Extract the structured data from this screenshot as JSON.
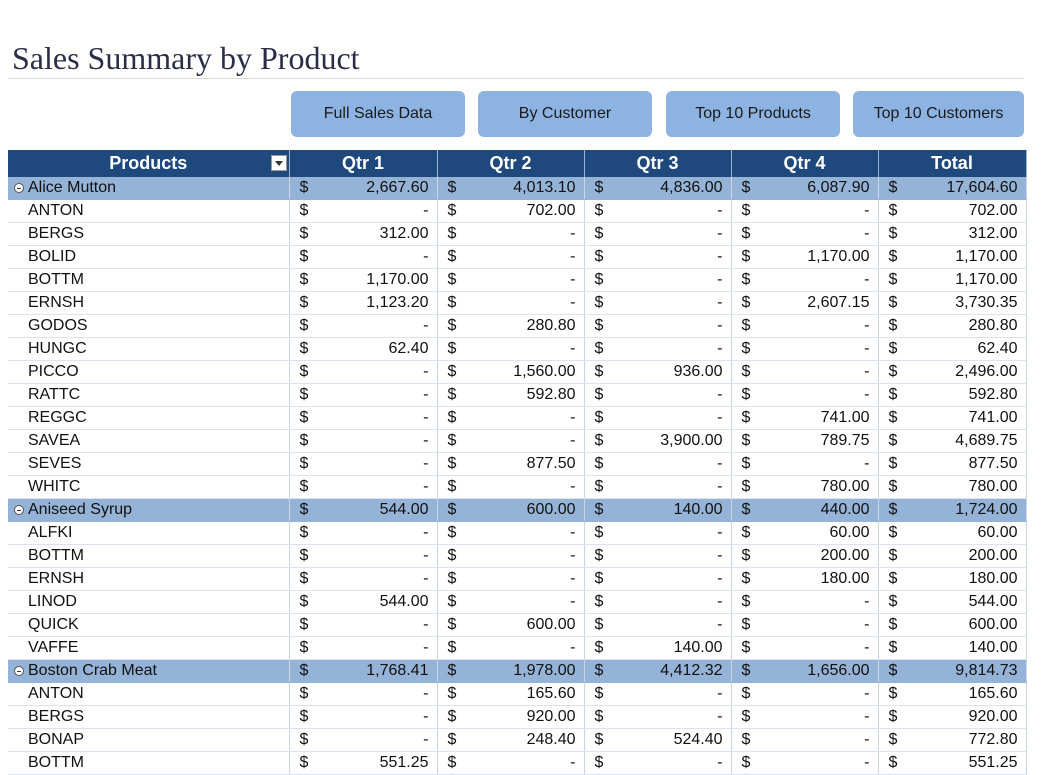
{
  "title": "Sales Summary by Product",
  "buttons": [
    "Full Sales Data",
    "By Customer",
    "Top 10 Products",
    "Top 10 Customers"
  ],
  "table": {
    "currency": "$",
    "columns": [
      "Products",
      "Qtr 1",
      "Qtr 2",
      "Qtr 3",
      "Qtr 4",
      "Total"
    ],
    "rows": [
      {
        "group": true,
        "label": "Alice Mutton",
        "cells": [
          "2,667.60",
          "4,013.10",
          "4,836.00",
          "6,087.90",
          "17,604.60"
        ]
      },
      {
        "label": "ANTON",
        "cells": [
          "-",
          "702.00",
          "-",
          "-",
          "702.00"
        ]
      },
      {
        "label": "BERGS",
        "cells": [
          "312.00",
          "-",
          "-",
          "-",
          "312.00"
        ]
      },
      {
        "label": "BOLID",
        "cells": [
          "-",
          "-",
          "-",
          "1,170.00",
          "1,170.00"
        ]
      },
      {
        "label": "BOTTM",
        "cells": [
          "1,170.00",
          "-",
          "-",
          "-",
          "1,170.00"
        ]
      },
      {
        "label": "ERNSH",
        "cells": [
          "1,123.20",
          "-",
          "-",
          "2,607.15",
          "3,730.35"
        ]
      },
      {
        "label": "GODOS",
        "cells": [
          "-",
          "280.80",
          "-",
          "-",
          "280.80"
        ]
      },
      {
        "label": "HUNGC",
        "cells": [
          "62.40",
          "-",
          "-",
          "-",
          "62.40"
        ]
      },
      {
        "label": "PICCO",
        "cells": [
          "-",
          "1,560.00",
          "936.00",
          "-",
          "2,496.00"
        ]
      },
      {
        "label": "RATTC",
        "cells": [
          "-",
          "592.80",
          "-",
          "-",
          "592.80"
        ]
      },
      {
        "label": "REGGC",
        "cells": [
          "-",
          "-",
          "-",
          "741.00",
          "741.00"
        ]
      },
      {
        "label": "SAVEA",
        "cells": [
          "-",
          "-",
          "3,900.00",
          "789.75",
          "4,689.75"
        ]
      },
      {
        "label": "SEVES",
        "cells": [
          "-",
          "877.50",
          "-",
          "-",
          "877.50"
        ]
      },
      {
        "label": "WHITC",
        "cells": [
          "-",
          "-",
          "-",
          "780.00",
          "780.00"
        ]
      },
      {
        "group": true,
        "label": "Aniseed Syrup",
        "cells": [
          "544.00",
          "600.00",
          "140.00",
          "440.00",
          "1,724.00"
        ]
      },
      {
        "label": "ALFKI",
        "cells": [
          "-",
          "-",
          "-",
          "60.00",
          "60.00"
        ]
      },
      {
        "label": "BOTTM",
        "cells": [
          "-",
          "-",
          "-",
          "200.00",
          "200.00"
        ]
      },
      {
        "label": "ERNSH",
        "cells": [
          "-",
          "-",
          "-",
          "180.00",
          "180.00"
        ]
      },
      {
        "label": "LINOD",
        "cells": [
          "544.00",
          "-",
          "-",
          "-",
          "544.00"
        ]
      },
      {
        "label": "QUICK",
        "cells": [
          "-",
          "600.00",
          "-",
          "-",
          "600.00"
        ]
      },
      {
        "label": "VAFFE",
        "cells": [
          "-",
          "-",
          "140.00",
          "-",
          "140.00"
        ]
      },
      {
        "group": true,
        "label": "Boston Crab Meat",
        "cells": [
          "1,768.41",
          "1,978.00",
          "4,412.32",
          "1,656.00",
          "9,814.73"
        ]
      },
      {
        "label": "ANTON",
        "cells": [
          "-",
          "165.60",
          "-",
          "-",
          "165.60"
        ]
      },
      {
        "label": "BERGS",
        "cells": [
          "-",
          "920.00",
          "-",
          "-",
          "920.00"
        ]
      },
      {
        "label": "BONAP",
        "cells": [
          "-",
          "248.40",
          "524.40",
          "-",
          "772.80"
        ]
      },
      {
        "label": "BOTTM",
        "cells": [
          "551.25",
          "-",
          "-",
          "-",
          "551.25"
        ]
      }
    ]
  }
}
